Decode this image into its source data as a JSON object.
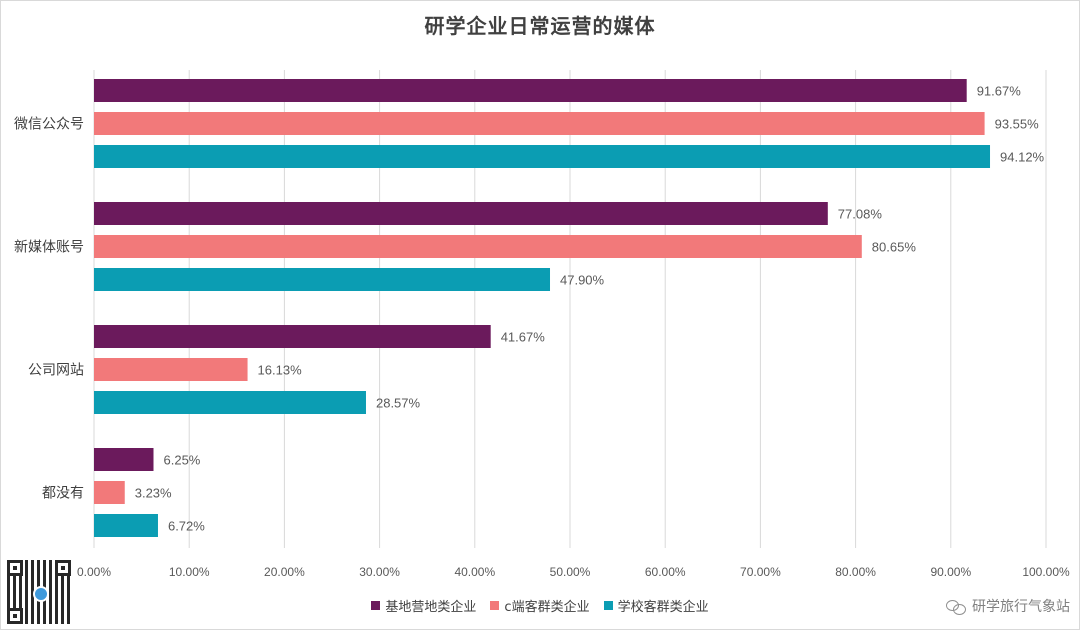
{
  "chart_data": {
    "type": "bar",
    "orientation": "horizontal",
    "title": "研学企业日常运营的媒体",
    "categories": [
      "微信公众号",
      "新媒体账号",
      "公司网站",
      "都没有"
    ],
    "series": [
      {
        "name": "基地营地类企业",
        "color": "#6b1a5c",
        "values": [
          91.67,
          77.08,
          41.67,
          6.25
        ],
        "labels": [
          "91.67%",
          "77.08%",
          "41.67%",
          "6.25%"
        ]
      },
      {
        "name": "c端客群类企业",
        "color": "#f2797a",
        "values": [
          93.55,
          80.65,
          16.13,
          3.23
        ],
        "labels": [
          "93.55%",
          "80.65%",
          "16.13%",
          "3.23%"
        ]
      },
      {
        "name": "学校客群类企业",
        "color": "#0b9db3",
        "values": [
          94.12,
          47.9,
          28.57,
          6.72
        ],
        "labels": [
          "94.12%",
          "47.90%",
          "28.57%",
          "6.72%"
        ]
      }
    ],
    "xlim": [
      0,
      100
    ],
    "xticks": [
      0,
      10,
      20,
      30,
      40,
      50,
      60,
      70,
      80,
      90,
      100
    ],
    "xtick_labels": [
      "0.00%",
      "10.00%",
      "20.00%",
      "30.00%",
      "40.00%",
      "50.00%",
      "60.00%",
      "70.00%",
      "80.00%",
      "90.00%",
      "100.00%"
    ],
    "grid": true,
    "legend_position": "bottom"
  },
  "watermark": {
    "text": "研学旅行气象站",
    "icon": "wechat-icon"
  },
  "qr_code": {
    "icon": "qr-code-icon"
  }
}
